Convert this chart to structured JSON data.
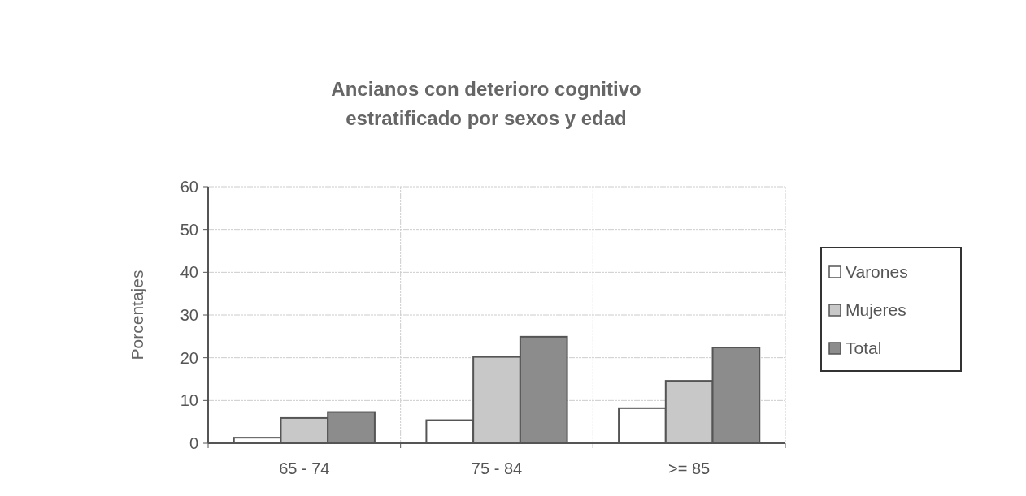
{
  "chart_data": {
    "type": "bar",
    "title": "Ancianos con deterioro cognitivo\nestratificado por sexos y edad",
    "ylabel": "Porcentajes",
    "categories": [
      "65 - 74",
      "75 - 84",
      ">= 85"
    ],
    "series": [
      {
        "name": "Varones",
        "color": "#ffffff",
        "values": [
          1.3,
          5.4,
          8.2
        ]
      },
      {
        "name": "Mujeres",
        "color": "#c8c8c8",
        "values": [
          5.9,
          20.2,
          14.6
        ]
      },
      {
        "name": "Total",
        "color": "#8c8c8c",
        "values": [
          7.3,
          24.9,
          22.4
        ]
      }
    ],
    "ylim": [
      0,
      60
    ],
    "yticks": [
      0,
      10,
      20,
      30,
      40,
      50,
      60
    ],
    "grid": true,
    "legend": "right"
  }
}
